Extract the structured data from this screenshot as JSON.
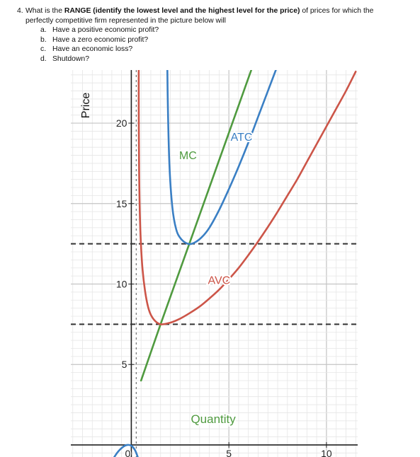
{
  "question": {
    "number": "4.",
    "text_before": "What is the ",
    "text_bold": "RANGE (identify the lowest level and the highest level for the price)",
    "text_after": " of prices for which the",
    "text_line2": "perfectly competitive firm represented in the picture below will",
    "items": [
      {
        "letter": "a.",
        "text": "Have a positive economic profit?"
      },
      {
        "letter": "b.",
        "text": "Have a zero economic profit?"
      },
      {
        "letter": "c.",
        "text": "Have an economic loss?"
      },
      {
        "letter": "d.",
        "text": "Shutdown?"
      }
    ]
  },
  "chart_data": {
    "type": "line",
    "xlabel": "Quantity",
    "ylabel": "Price",
    "xlim": [
      -3.1,
      11.6
    ],
    "ylim": [
      -0.75,
      23.3
    ],
    "x_ticks": [
      {
        "value": 0,
        "label": "0"
      },
      {
        "value": 5,
        "label": "5"
      },
      {
        "value": 10,
        "label": "10"
      }
    ],
    "y_ticks": [
      {
        "value": 5,
        "label": "5"
      },
      {
        "value": 10,
        "label": "10"
      },
      {
        "value": 15,
        "label": "15"
      },
      {
        "value": 20,
        "label": "20"
      }
    ],
    "minor_grid_step": 0.5,
    "grid": true,
    "horizontal_reference_lines": [
      {
        "y": 12.5,
        "style": "dashed"
      },
      {
        "y": 7.5,
        "style": "dashed"
      }
    ],
    "vertical_reference_lines": [
      {
        "x": 0.25,
        "style": "dashed"
      }
    ],
    "series": [
      {
        "name": "MC",
        "color": "#4f9a3f",
        "x": [
          0.5,
          1.5,
          2.5,
          3.5,
          4.5,
          5.5,
          6.5,
          7.1
        ],
        "y": [
          4.0,
          7.5,
          10.9,
          14.3,
          17.7,
          21.1,
          24.5,
          26.5
        ]
      },
      {
        "name": "ATC",
        "color": "#3a7fc4",
        "x": [
          1.82,
          1.86,
          1.95,
          2.1,
          2.3,
          2.55,
          2.9,
          3.2,
          3.6,
          4.0,
          4.5,
          5.0,
          5.5,
          6.0,
          6.5,
          7.0,
          7.5,
          8.0,
          8.5
        ],
        "y": [
          27.0,
          22.0,
          17.5,
          14.8,
          13.4,
          12.8,
          12.5,
          12.55,
          12.9,
          13.5,
          14.6,
          15.9,
          17.3,
          18.8,
          20.4,
          22.0,
          23.6,
          25.2,
          26.8
        ]
      },
      {
        "name": "AVC",
        "color": "#cc5548",
        "x": [
          0.38,
          0.38,
          0.4,
          0.45,
          0.55,
          0.7,
          0.9,
          1.15,
          1.5,
          2.0,
          2.5,
          3.0,
          3.5,
          4.0,
          4.5,
          5.0,
          5.5,
          6.0,
          6.5,
          7.0,
          7.5,
          8.0,
          8.5,
          9.0,
          9.5,
          10.0,
          10.5,
          11.0,
          11.5
        ],
        "y": [
          25.0,
          21.0,
          17.0,
          13.8,
          11.3,
          9.6,
          8.4,
          7.8,
          7.5,
          7.6,
          7.85,
          8.2,
          8.6,
          9.1,
          9.65,
          10.3,
          11.0,
          11.8,
          12.65,
          13.55,
          14.5,
          15.5,
          16.5,
          17.6,
          18.7,
          19.8,
          20.9,
          22.0,
          23.2
        ]
      },
      {
        "name": "",
        "color": "#3a7fc4",
        "x": [
          -1.0,
          -0.7,
          -0.4,
          -0.2,
          0.0,
          0.2,
          0.4
        ],
        "y": [
          -1.0,
          -0.45,
          -0.1,
          0.0,
          -0.05,
          -0.35,
          -1.0
        ]
      }
    ],
    "annotations": [
      {
        "text": "MC",
        "x": 2.9,
        "y": 17.75,
        "color": "#4f9a3f"
      },
      {
        "text": "ATC",
        "x": 5.65,
        "y": 18.9,
        "color": "#3a7fc4"
      },
      {
        "text": "AVC",
        "x": 4.5,
        "y": 10.0,
        "color": "#cc5548"
      },
      {
        "text": "Quantity",
        "x": 4.2,
        "y": 1.35,
        "color": "#4f9a3f"
      }
    ]
  }
}
